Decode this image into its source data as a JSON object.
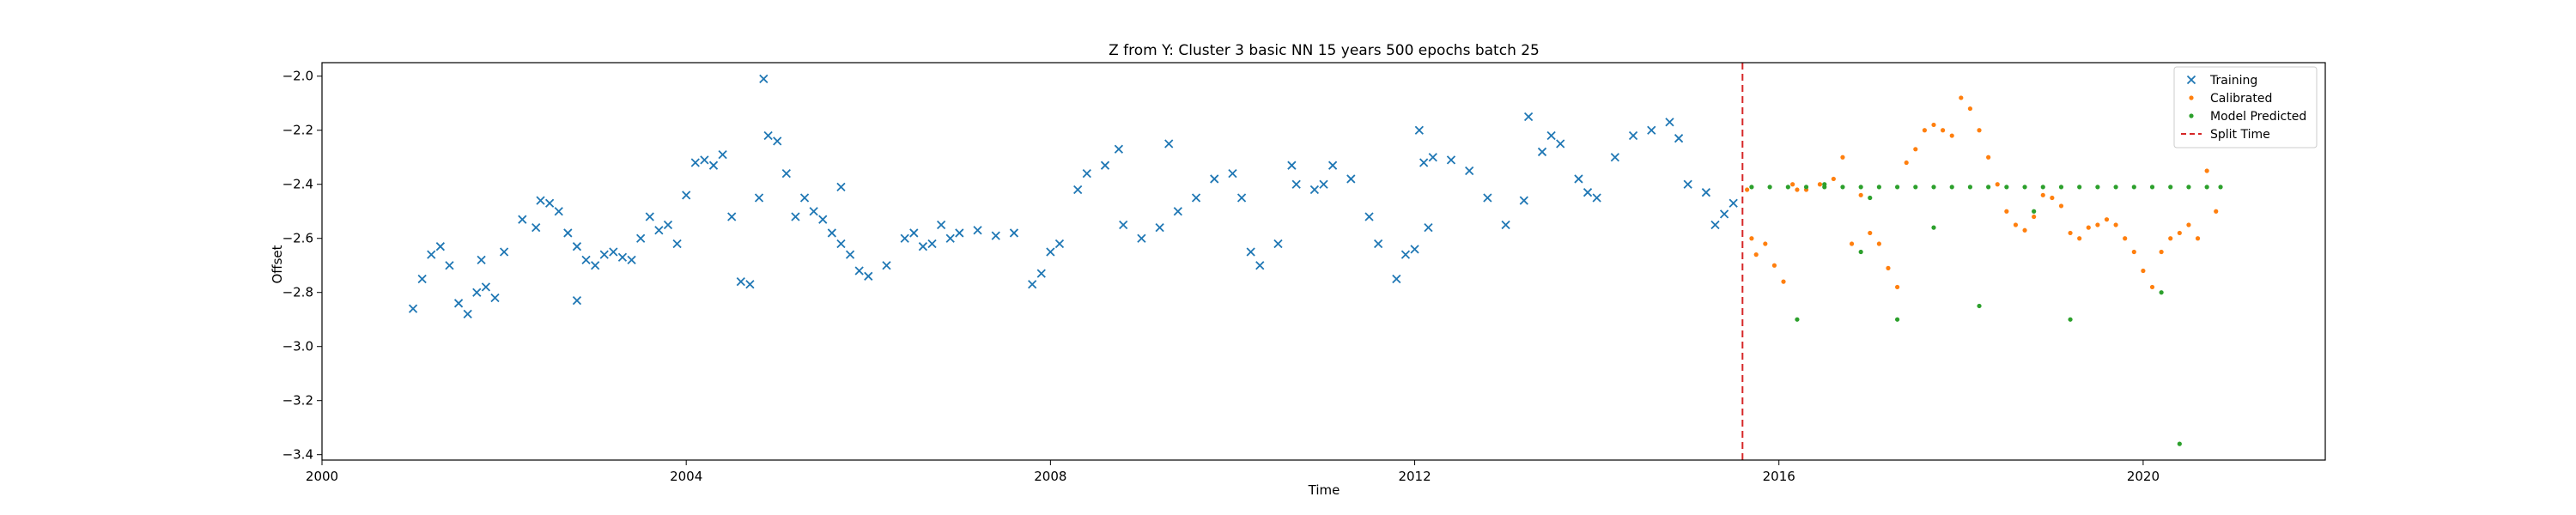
{
  "chart_data": {
    "type": "scatter",
    "title": "Z from Y: Cluster 3 basic NN 15 years 500 epochs batch 25",
    "xlabel": "Time",
    "ylabel": "Offset",
    "xlim": [
      2000.0,
      2022.0
    ],
    "ylim": [
      -3.42,
      -1.95
    ],
    "x_ticks": [
      2000,
      2004,
      2008,
      2012,
      2016,
      2020
    ],
    "y_ticks": [
      -2.0,
      -2.2,
      -2.4,
      -2.6,
      -2.8,
      -3.0,
      -3.2,
      -3.4
    ],
    "x_tick_labels": [
      "2000",
      "2004",
      "2008",
      "2012",
      "2016",
      "2020"
    ],
    "y_tick_labels": [
      "−2.0",
      "−2.2",
      "−2.4",
      "−2.6",
      "−2.8",
      "−3.0",
      "−3.2",
      "−3.4"
    ],
    "grid": false,
    "legend_position": "top-right",
    "split_time": 2015.6,
    "series": [
      {
        "name": "Training",
        "marker": "x",
        "color": "#1f77b4",
        "points": [
          [
            2001.0,
            -2.86
          ],
          [
            2001.1,
            -2.75
          ],
          [
            2001.2,
            -2.66
          ],
          [
            2001.3,
            -2.63
          ],
          [
            2001.4,
            -2.7
          ],
          [
            2001.5,
            -2.84
          ],
          [
            2001.6,
            -2.88
          ],
          [
            2001.7,
            -2.8
          ],
          [
            2001.8,
            -2.78
          ],
          [
            2001.9,
            -2.82
          ],
          [
            2002.0,
            -2.65
          ],
          [
            2002.2,
            -2.53
          ],
          [
            2002.4,
            -2.46
          ],
          [
            2002.5,
            -2.47
          ],
          [
            2002.6,
            -2.5
          ],
          [
            2002.7,
            -2.58
          ],
          [
            2002.8,
            -2.63
          ],
          [
            2002.9,
            -2.68
          ],
          [
            2003.0,
            -2.7
          ],
          [
            2003.1,
            -2.66
          ],
          [
            2003.2,
            -2.65
          ],
          [
            2003.3,
            -2.67
          ],
          [
            2003.4,
            -2.68
          ],
          [
            2003.5,
            -2.6
          ],
          [
            2003.6,
            -2.52
          ],
          [
            2003.7,
            -2.57
          ],
          [
            2003.8,
            -2.55
          ],
          [
            2003.9,
            -2.62
          ],
          [
            2004.0,
            -2.44
          ],
          [
            2004.1,
            -2.32
          ],
          [
            2004.2,
            -2.31
          ],
          [
            2004.3,
            -2.33
          ],
          [
            2004.4,
            -2.29
          ],
          [
            2004.5,
            -2.52
          ],
          [
            2004.6,
            -2.76
          ],
          [
            2004.7,
            -2.77
          ],
          [
            2004.8,
            -2.45
          ],
          [
            2004.9,
            -2.22
          ],
          [
            2005.0,
            -2.24
          ],
          [
            2005.1,
            -2.36
          ],
          [
            2005.2,
            -2.52
          ],
          [
            2005.3,
            -2.45
          ],
          [
            2005.4,
            -2.5
          ],
          [
            2005.5,
            -2.53
          ],
          [
            2005.6,
            -2.58
          ],
          [
            2005.7,
            -2.62
          ],
          [
            2005.8,
            -2.66
          ],
          [
            2005.9,
            -2.72
          ],
          [
            2006.0,
            -2.74
          ],
          [
            2006.2,
            -2.7
          ],
          [
            2006.4,
            -2.6
          ],
          [
            2006.5,
            -2.58
          ],
          [
            2006.6,
            -2.63
          ],
          [
            2006.7,
            -2.62
          ],
          [
            2006.8,
            -2.55
          ],
          [
            2006.9,
            -2.6
          ],
          [
            2007.0,
            -2.58
          ],
          [
            2007.2,
            -2.57
          ],
          [
            2007.4,
            -2.59
          ],
          [
            2007.6,
            -2.58
          ],
          [
            2007.8,
            -2.77
          ],
          [
            2007.9,
            -2.73
          ],
          [
            2008.0,
            -2.65
          ],
          [
            2008.1,
            -2.62
          ],
          [
            2008.3,
            -2.42
          ],
          [
            2008.4,
            -2.36
          ],
          [
            2008.6,
            -2.33
          ],
          [
            2008.8,
            -2.55
          ],
          [
            2009.0,
            -2.6
          ],
          [
            2009.2,
            -2.56
          ],
          [
            2009.4,
            -2.5
          ],
          [
            2009.6,
            -2.45
          ],
          [
            2009.8,
            -2.38
          ],
          [
            2010.0,
            -2.36
          ],
          [
            2010.1,
            -2.45
          ],
          [
            2010.3,
            -2.7
          ],
          [
            2010.5,
            -2.62
          ],
          [
            2010.7,
            -2.4
          ],
          [
            2010.9,
            -2.42
          ],
          [
            2011.0,
            -2.4
          ],
          [
            2011.3,
            -2.38
          ],
          [
            2011.5,
            -2.52
          ],
          [
            2011.6,
            -2.62
          ],
          [
            2011.8,
            -2.75
          ],
          [
            2012.0,
            -2.64
          ],
          [
            2012.1,
            -2.32
          ],
          [
            2012.2,
            -2.3
          ],
          [
            2012.4,
            -2.31
          ],
          [
            2012.6,
            -2.35
          ],
          [
            2012.8,
            -2.45
          ],
          [
            2013.0,
            -2.55
          ],
          [
            2013.2,
            -2.46
          ],
          [
            2013.4,
            -2.28
          ],
          [
            2013.5,
            -2.22
          ],
          [
            2013.6,
            -2.25
          ],
          [
            2013.8,
            -2.38
          ],
          [
            2013.9,
            -2.43
          ],
          [
            2014.0,
            -2.45
          ],
          [
            2014.2,
            -2.3
          ],
          [
            2014.4,
            -2.22
          ],
          [
            2014.6,
            -2.2
          ],
          [
            2014.8,
            -2.17
          ],
          [
            2014.9,
            -2.23
          ],
          [
            2015.0,
            -2.4
          ],
          [
            2015.2,
            -2.43
          ],
          [
            2015.3,
            -2.55
          ],
          [
            2015.4,
            -2.51
          ],
          [
            2015.5,
            -2.47
          ],
          [
            2004.85,
            -2.01
          ],
          [
            2001.75,
            -2.68
          ],
          [
            2002.35,
            -2.56
          ],
          [
            2002.8,
            -2.83
          ],
          [
            2005.7,
            -2.41
          ],
          [
            2008.75,
            -2.27
          ],
          [
            2009.3,
            -2.25
          ],
          [
            2010.2,
            -2.65
          ],
          [
            2011.1,
            -2.33
          ],
          [
            2012.05,
            -2.2
          ],
          [
            2012.15,
            -2.56
          ],
          [
            2011.9,
            -2.66
          ],
          [
            2010.65,
            -2.33
          ],
          [
            2013.25,
            -2.15
          ]
        ]
      },
      {
        "name": "Calibrated",
        "marker": "dot",
        "color": "#ff7f0e",
        "points": [
          [
            2015.65,
            -2.42
          ],
          [
            2015.7,
            -2.6
          ],
          [
            2015.75,
            -2.66
          ],
          [
            2015.85,
            -2.62
          ],
          [
            2015.95,
            -2.7
          ],
          [
            2016.05,
            -2.76
          ],
          [
            2016.15,
            -2.4
          ],
          [
            2016.2,
            -2.42
          ],
          [
            2016.3,
            -2.42
          ],
          [
            2016.45,
            -2.4
          ],
          [
            2016.6,
            -2.38
          ],
          [
            2016.7,
            -2.3
          ],
          [
            2016.8,
            -2.62
          ],
          [
            2016.9,
            -2.44
          ],
          [
            2017.0,
            -2.58
          ],
          [
            2017.1,
            -2.62
          ],
          [
            2017.2,
            -2.71
          ],
          [
            2017.3,
            -2.78
          ],
          [
            2017.4,
            -2.32
          ],
          [
            2017.5,
            -2.27
          ],
          [
            2017.6,
            -2.2
          ],
          [
            2017.7,
            -2.18
          ],
          [
            2017.8,
            -2.2
          ],
          [
            2017.9,
            -2.22
          ],
          [
            2018.0,
            -2.08
          ],
          [
            2018.1,
            -2.12
          ],
          [
            2018.2,
            -2.2
          ],
          [
            2018.3,
            -2.3
          ],
          [
            2018.4,
            -2.4
          ],
          [
            2018.5,
            -2.5
          ],
          [
            2018.6,
            -2.55
          ],
          [
            2018.7,
            -2.57
          ],
          [
            2018.8,
            -2.52
          ],
          [
            2018.9,
            -2.44
          ],
          [
            2019.0,
            -2.45
          ],
          [
            2019.1,
            -2.48
          ],
          [
            2019.2,
            -2.58
          ],
          [
            2019.3,
            -2.6
          ],
          [
            2019.4,
            -2.56
          ],
          [
            2019.5,
            -2.55
          ],
          [
            2019.6,
            -2.53
          ],
          [
            2019.7,
            -2.55
          ],
          [
            2019.8,
            -2.6
          ],
          [
            2019.9,
            -2.65
          ],
          [
            2020.0,
            -2.72
          ],
          [
            2020.1,
            -2.78
          ],
          [
            2020.2,
            -2.65
          ],
          [
            2020.3,
            -2.6
          ],
          [
            2020.4,
            -2.58
          ],
          [
            2020.5,
            -2.55
          ],
          [
            2020.6,
            -2.6
          ],
          [
            2020.7,
            -2.35
          ],
          [
            2020.8,
            -2.5
          ]
        ]
      },
      {
        "name": "Model Predicted",
        "marker": "dot",
        "color": "#2ca02c",
        "points": [
          [
            2015.7,
            -2.41
          ],
          [
            2015.9,
            -2.41
          ],
          [
            2016.1,
            -2.41
          ],
          [
            2016.3,
            -2.41
          ],
          [
            2016.5,
            -2.41
          ],
          [
            2016.7,
            -2.41
          ],
          [
            2016.9,
            -2.41
          ],
          [
            2017.1,
            -2.41
          ],
          [
            2017.3,
            -2.41
          ],
          [
            2017.5,
            -2.41
          ],
          [
            2017.7,
            -2.41
          ],
          [
            2017.9,
            -2.41
          ],
          [
            2018.1,
            -2.41
          ],
          [
            2018.3,
            -2.41
          ],
          [
            2018.5,
            -2.41
          ],
          [
            2018.7,
            -2.41
          ],
          [
            2018.9,
            -2.41
          ],
          [
            2019.1,
            -2.41
          ],
          [
            2019.3,
            -2.41
          ],
          [
            2019.5,
            -2.41
          ],
          [
            2019.7,
            -2.41
          ],
          [
            2019.9,
            -2.41
          ],
          [
            2020.1,
            -2.41
          ],
          [
            2020.3,
            -2.41
          ],
          [
            2020.5,
            -2.41
          ],
          [
            2020.7,
            -2.41
          ],
          [
            2020.85,
            -2.41
          ],
          [
            2016.2,
            -2.9
          ],
          [
            2016.5,
            -2.4
          ],
          [
            2016.9,
            -2.65
          ],
          [
            2017.0,
            -2.45
          ],
          [
            2017.3,
            -2.9
          ],
          [
            2017.7,
            -2.56
          ],
          [
            2018.2,
            -2.85
          ],
          [
            2018.8,
            -2.5
          ],
          [
            2019.2,
            -2.9
          ],
          [
            2020.2,
            -2.8
          ],
          [
            2020.4,
            -3.36
          ]
        ]
      }
    ],
    "legend": [
      {
        "label": "Training",
        "marker": "x",
        "color": "#1f77b4"
      },
      {
        "label": "Calibrated",
        "marker": "dot",
        "color": "#ff7f0e"
      },
      {
        "label": "Model Predicted",
        "marker": "dot",
        "color": "#2ca02c"
      },
      {
        "label": "Split Time",
        "marker": "dashed-line",
        "color": "#d62728"
      }
    ]
  }
}
